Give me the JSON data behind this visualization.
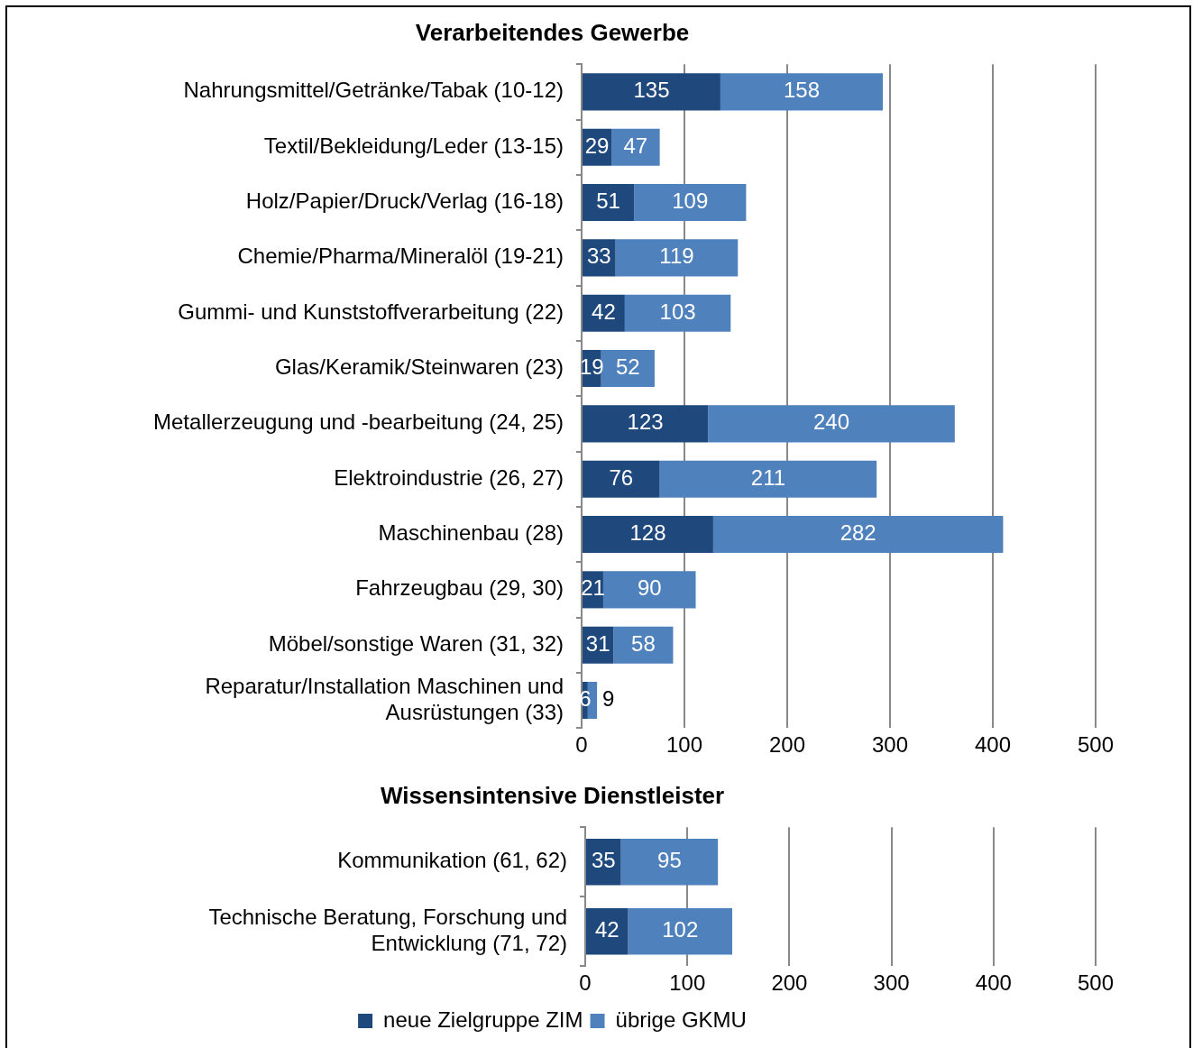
{
  "chart_data": [
    {
      "type": "bar",
      "title": "Verarbeitendes Gewerbe",
      "orientation": "horizontal",
      "stacked": true,
      "categories": [
        "Nahrungsmittel/Getränke/Tabak (10-12)",
        "Textil/Bekleidung/Leder (13-15)",
        "Holz/Papier/Druck/Verlag (16-18)",
        "Chemie/Pharma/Mineralöl (19-21)",
        "Gummi- und Kunststoffverarbeitung (22)",
        "Glas/Keramik/Steinwaren (23)",
        "Metallerzeugung und -bearbeitung (24, 25)",
        "Elektroindustrie (26, 27)",
        "Maschinenbau (28)",
        "Fahrzeugbau (29, 30)",
        "Möbel/sonstige Waren (31, 32)",
        "Reparatur/Installation Maschinen und Ausrüstungen (33)"
      ],
      "series": [
        {
          "color": "#1f497d",
          "values": [
            135,
            29,
            51,
            33,
            42,
            19,
            123,
            76,
            128,
            21,
            31,
            6
          ]
        },
        {
          "color": "#4f81bd",
          "values": [
            158,
            47,
            109,
            119,
            103,
            52,
            240,
            211,
            282,
            90,
            58,
            9
          ]
        }
      ],
      "xlim": [
        0,
        500
      ],
      "xticks": [
        0,
        100,
        200,
        300,
        400,
        500
      ],
      "grid": "x",
      "data_labels": true,
      "legend": false
    },
    {
      "type": "bar",
      "title": "Wissensintensive Dienstleister",
      "orientation": "horizontal",
      "stacked": true,
      "categories": [
        "Kommunikation (61, 62)",
        "Technische Beratung, Forschung und Entwicklung (71, 72)"
      ],
      "series": [
        {
          "name": "neue Zielgruppe ZIM",
          "color": "#1f497d",
          "values": [
            35,
            42
          ]
        },
        {
          "name": "übrige GKMU",
          "color": "#4f81bd",
          "values": [
            95,
            102
          ]
        }
      ],
      "xlim": [
        0,
        500
      ],
      "xticks": [
        0,
        100,
        200,
        300,
        400,
        500
      ],
      "grid": "x",
      "data_labels": true,
      "legend": "bottom"
    }
  ]
}
